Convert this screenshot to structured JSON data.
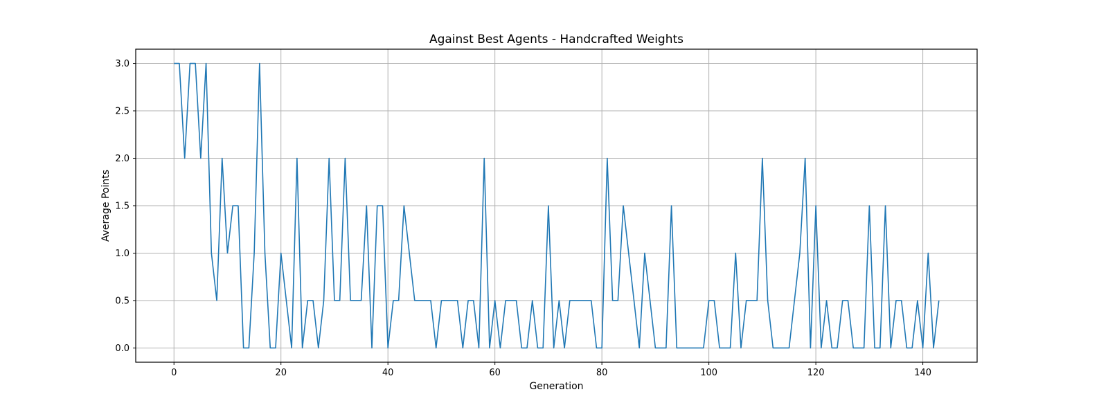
{
  "chart_data": {
    "type": "line",
    "title": "Against Best Agents - Handcrafted Weights",
    "xlabel": "Generation",
    "ylabel": "Average Points",
    "xlim": [
      -7.15,
      150.15
    ],
    "ylim": [
      -0.15,
      3.15
    ],
    "x_ticks": [
      0,
      20,
      40,
      60,
      80,
      100,
      120,
      140
    ],
    "x_tick_labels": [
      "0",
      "20",
      "40",
      "60",
      "80",
      "100",
      "120",
      "140"
    ],
    "y_ticks": [
      0,
      0.5,
      1.0,
      1.5,
      2.0,
      2.5,
      3.0
    ],
    "y_tick_labels": [
      "0.0",
      "0.5",
      "1.0",
      "1.5",
      "2.0",
      "2.5",
      "3.0"
    ],
    "grid": true,
    "series": [
      {
        "name": "Average Points",
        "color": "#1f77b4",
        "x_start": 0,
        "values": [
          3,
          3,
          2,
          3,
          3,
          2,
          3,
          1,
          0.5,
          2,
          1,
          1.5,
          1.5,
          0,
          0,
          1,
          3,
          1,
          0,
          0,
          1,
          0.5,
          0,
          2,
          0,
          0.5,
          0.5,
          0,
          0.5,
          2,
          0.5,
          0.5,
          2,
          0.5,
          0.5,
          0.5,
          1.5,
          0,
          1.5,
          1.5,
          0,
          0.5,
          0.5,
          1.5,
          1,
          0.5,
          0.5,
          0.5,
          0.5,
          0,
          0.5,
          0.5,
          0.5,
          0.5,
          0,
          0.5,
          0.5,
          0,
          2,
          0,
          0.5,
          0,
          0.5,
          0.5,
          0.5,
          0,
          0,
          0.5,
          0,
          0,
          1.5,
          0,
          0.5,
          0,
          0.5,
          0.5,
          0.5,
          0.5,
          0.5,
          0,
          0,
          2,
          0.5,
          0.5,
          1.5,
          1,
          0.5,
          0,
          1,
          0.5,
          0,
          0,
          0,
          1.5,
          0,
          0,
          0,
          0,
          0,
          0,
          0.5,
          0.5,
          0,
          0,
          0,
          1,
          0,
          0.5,
          0.5,
          0.5,
          2,
          0.5,
          0,
          0,
          0,
          0,
          0.5,
          1,
          2,
          0,
          1.5,
          0,
          0.5,
          0,
          0,
          0.5,
          0.5,
          0,
          0,
          0,
          1.5,
          0,
          0,
          1.5,
          0,
          0.5,
          0.5,
          0,
          0,
          0.5,
          0,
          1,
          0,
          0.5
        ]
      }
    ]
  }
}
